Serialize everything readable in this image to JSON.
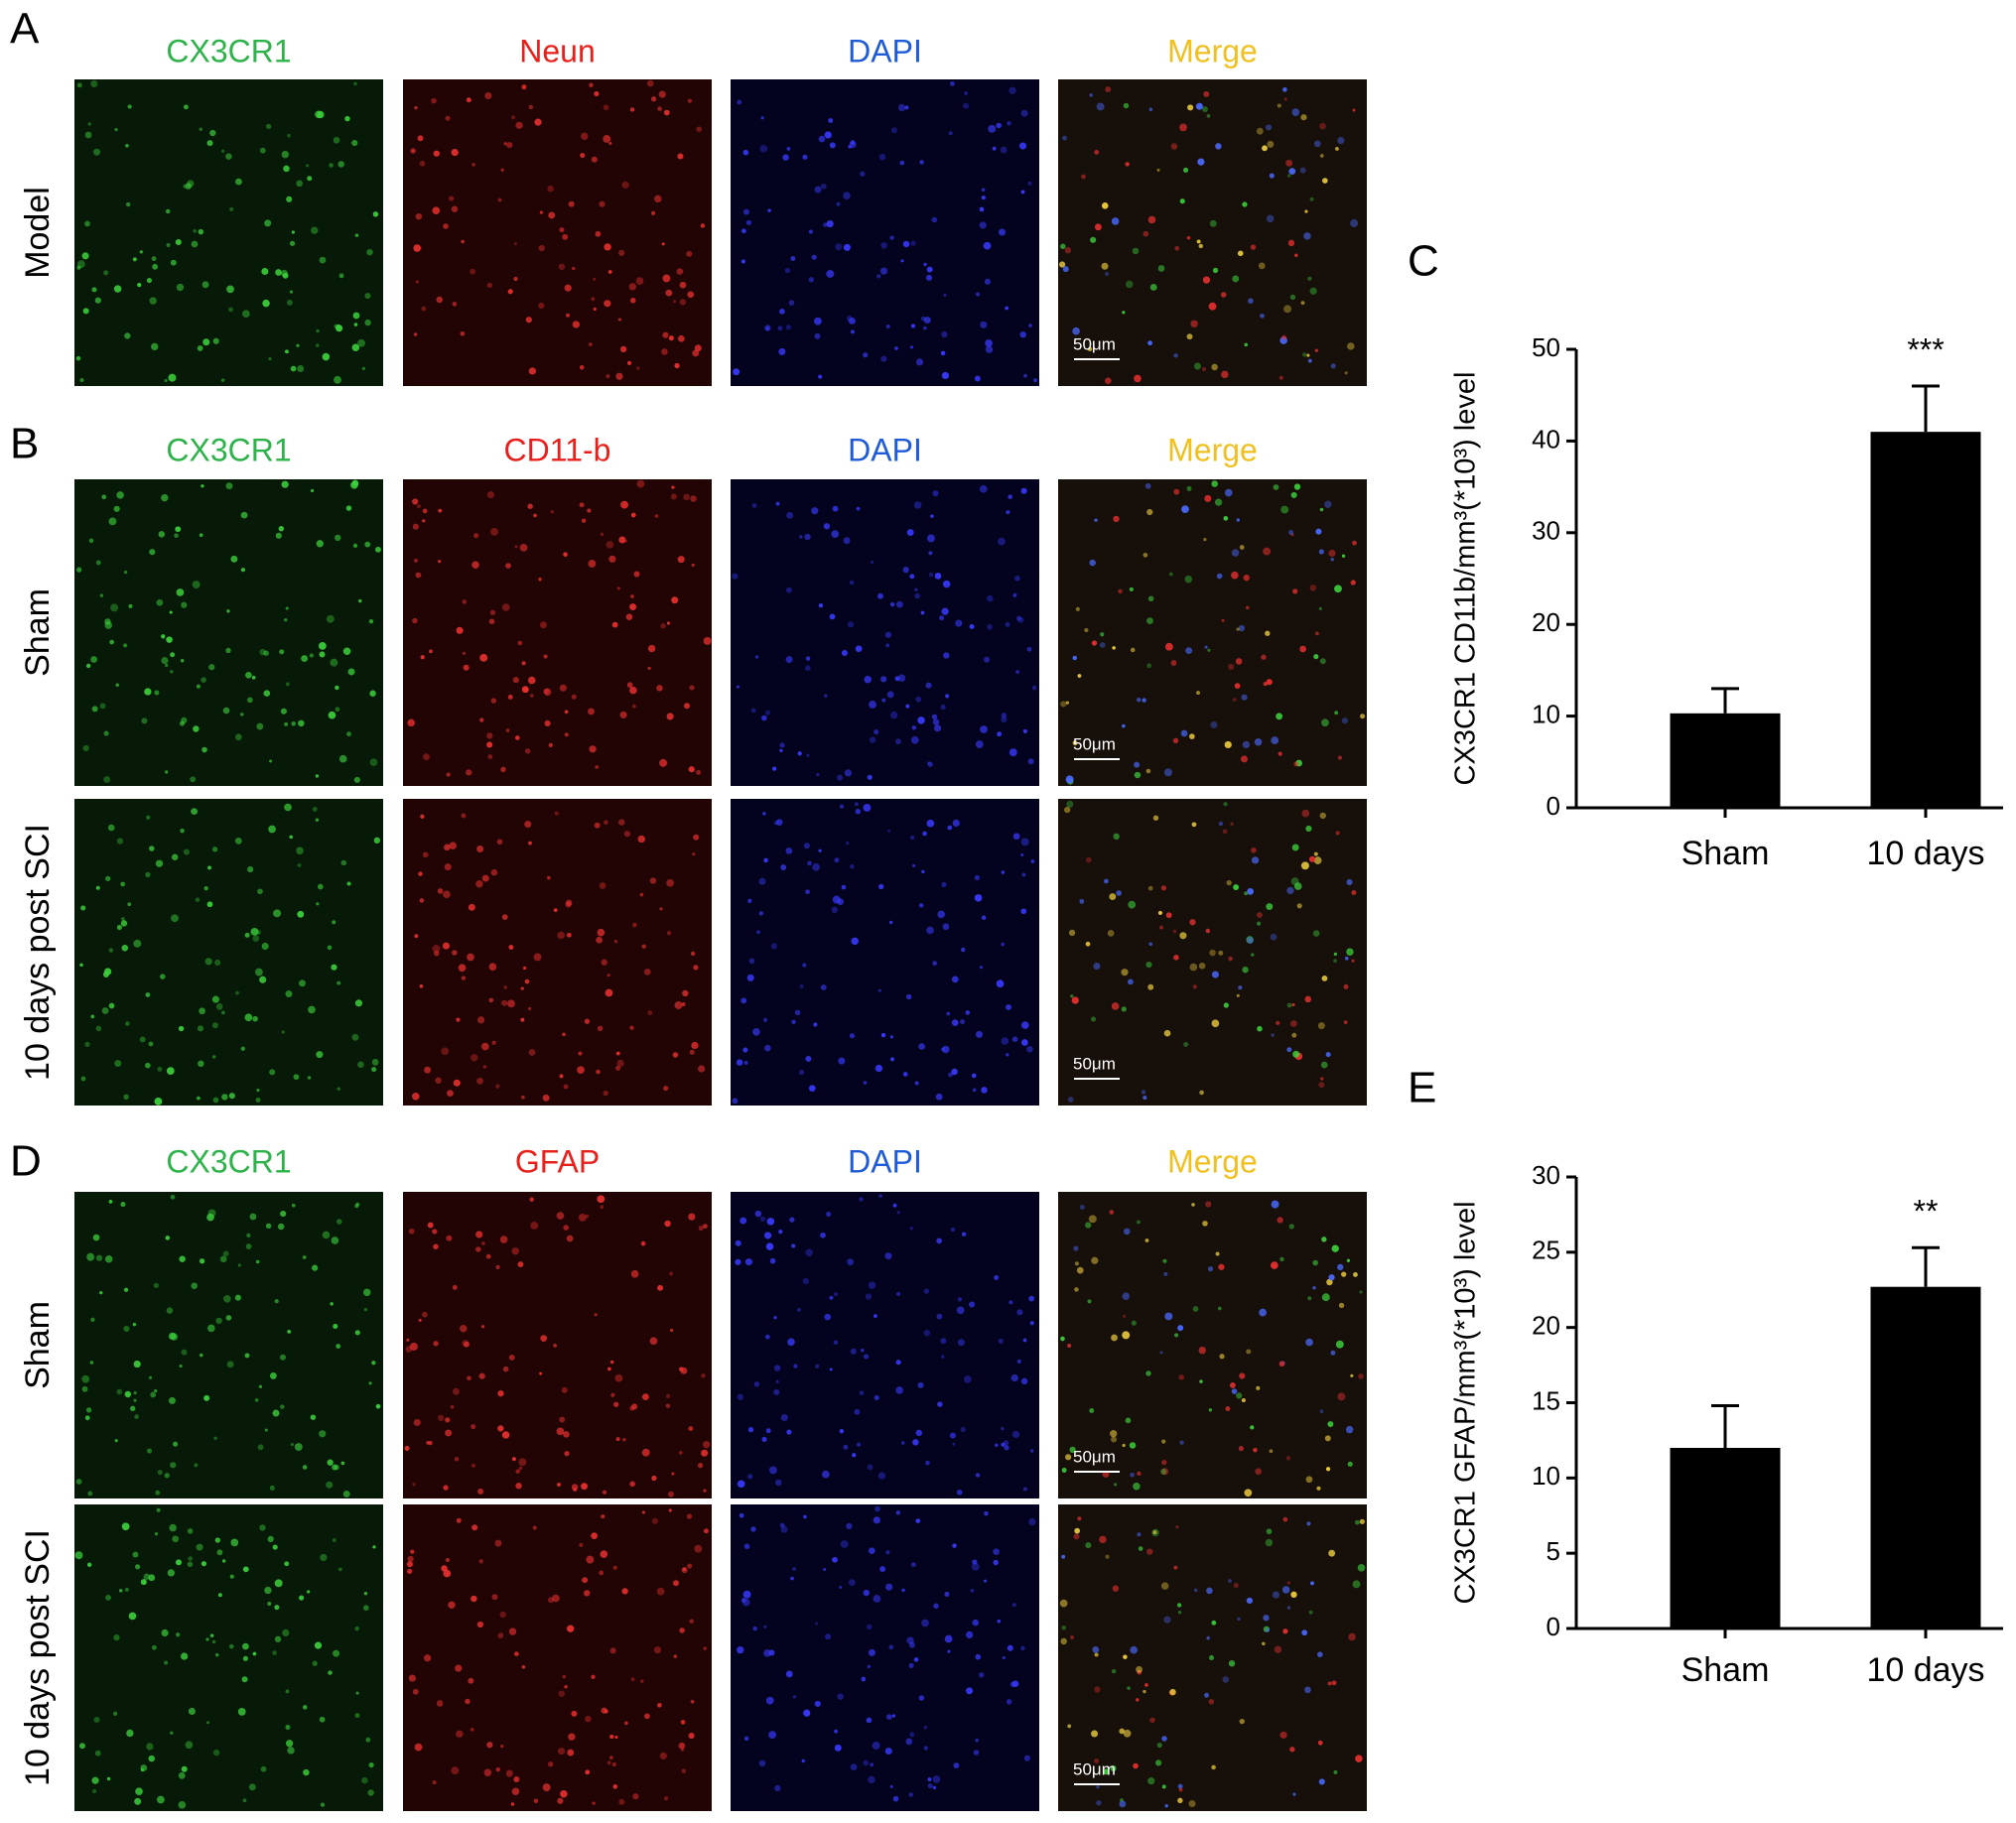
{
  "figure": {
    "A": {
      "letter": "A",
      "columns": [
        "CX3CR1",
        "Neun",
        "DAPI",
        "Merge"
      ],
      "rows": [
        "Model"
      ],
      "scale_bar": "50μm"
    },
    "B": {
      "letter": "B",
      "columns": [
        "CX3CR1",
        "CD11-b",
        "DAPI",
        "Merge"
      ],
      "rows": [
        "Sham",
        "10 days post SCI"
      ],
      "scale_bar": "50μm"
    },
    "D": {
      "letter": "D",
      "columns": [
        "CX3CR1",
        "GFAP",
        "DAPI",
        "Merge"
      ],
      "rows": [
        "Sham",
        "10 days post SCI"
      ],
      "scale_bar": "50μm"
    }
  },
  "chart_data": [
    {
      "type": "bar",
      "letter": "C",
      "ylabel": "CX3CR1 CD11b/mm³(*10³) level",
      "categories": [
        "Sham",
        "10 days"
      ],
      "values": [
        10.3,
        41
      ],
      "errors": [
        2.7,
        5
      ],
      "significance": [
        null,
        "***"
      ],
      "color": "#000000",
      "ylim": [
        0,
        50
      ],
      "yticks": [
        0,
        10,
        20,
        30,
        40,
        50
      ]
    },
    {
      "type": "bar",
      "letter": "E",
      "ylabel": "CX3CR1 GFAP/mm³(*10³) level",
      "categories": [
        "Sham",
        "10 days"
      ],
      "values": [
        12,
        22.7
      ],
      "errors": [
        2.8,
        2.6
      ],
      "significance": [
        null,
        "**"
      ],
      "color": "#000000",
      "ylim": [
        0,
        30
      ],
      "yticks": [
        0,
        5,
        10,
        15,
        20,
        25,
        30
      ]
    }
  ]
}
